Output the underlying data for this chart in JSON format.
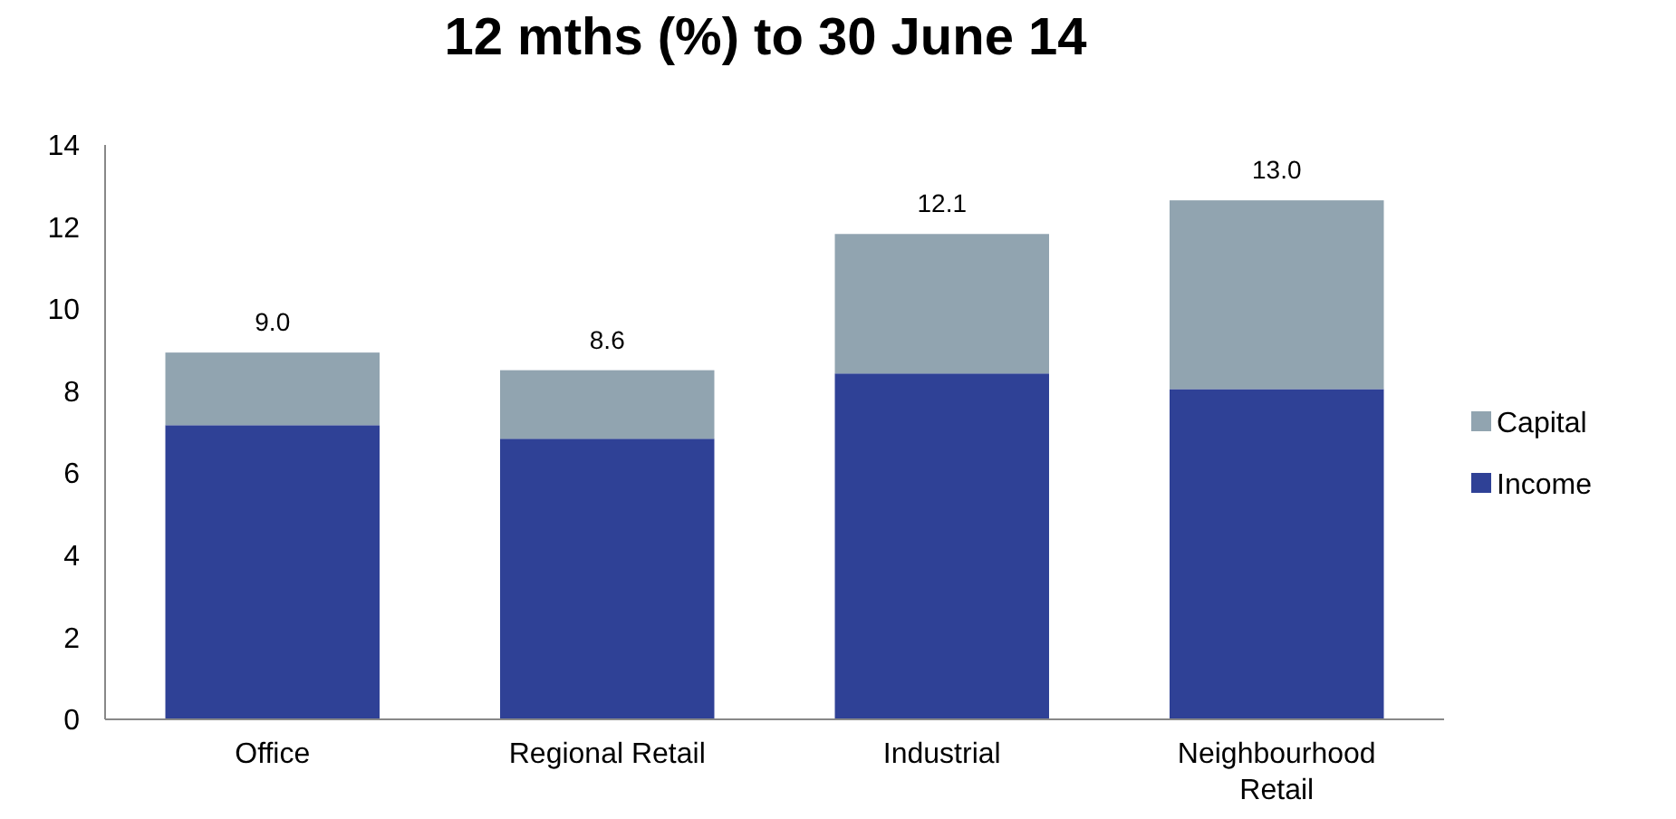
{
  "chart_data": {
    "type": "bar",
    "title": "12 mths (%) to 30 June 14",
    "categories": [
      "Office",
      "Regional Retail",
      "Industrial",
      "Neighbourhood Retail"
    ],
    "stacked": true,
    "series": [
      {
        "name": "Income",
        "color": "#2f4196",
        "values": [
          7.17,
          6.84,
          8.43,
          8.05
        ]
      },
      {
        "name": "Capital",
        "color": "#91a4b0",
        "values": [
          1.77,
          1.67,
          3.4,
          4.6
        ]
      }
    ],
    "annotations": [
      "9.0",
      "8.6",
      "12.1",
      "13.0"
    ],
    "ylim": [
      0,
      14
    ],
    "yticks": [
      0,
      2,
      4,
      6,
      8,
      10,
      12,
      14
    ],
    "grid": false,
    "legend": "right"
  }
}
